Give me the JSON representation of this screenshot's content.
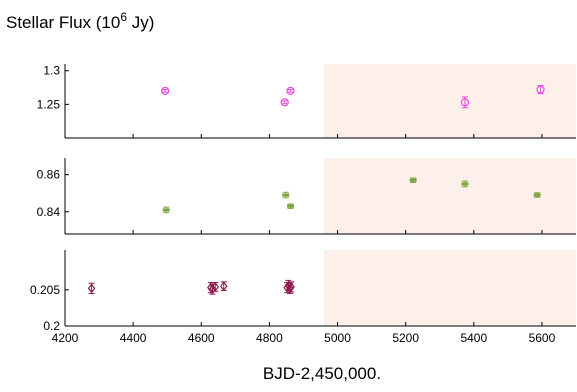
{
  "chart_data": {
    "type": "scatter",
    "title": "Stellar Flux (10",
    "title_exponent": "6",
    "title_unit": " Jy)",
    "xlabel": "BJD-2,450,000.",
    "xlim": [
      4200,
      5700
    ],
    "x_ticks": [
      4200,
      4400,
      4600,
      4800,
      5000,
      5200,
      5400,
      5600
    ],
    "shaded_region": {
      "x_start": 4960,
      "color": "#fdf0ea"
    },
    "panels": [
      {
        "ylim": [
          1.2,
          1.31
        ],
        "y_ticks": [
          {
            "value": 1.25,
            "label": "1.25"
          },
          {
            "value": 1.3,
            "label": "1.3"
          }
        ],
        "color": "#e84ae3",
        "marker": "circle",
        "points": [
          {
            "x": 4494,
            "y": 1.27,
            "err": 0.002
          },
          {
            "x": 4845,
            "y": 1.253,
            "err": 0.002
          },
          {
            "x": 4862,
            "y": 1.27,
            "err": 0.002
          },
          {
            "x": 5374,
            "y": 1.253,
            "err": 0.008
          },
          {
            "x": 5596,
            "y": 1.272,
            "err": 0.006
          }
        ]
      },
      {
        "ylim": [
          0.828,
          0.869
        ],
        "y_ticks": [
          {
            "value": 0.84,
            "label": "0.84"
          },
          {
            "value": 0.86,
            "label": "0.86"
          }
        ],
        "color": "#7ea23c",
        "marker": "bar",
        "points": [
          {
            "x": 4497,
            "y": 0.841,
            "err": 0.0015
          },
          {
            "x": 4848,
            "y": 0.849,
            "err": 0.0015
          },
          {
            "x": 4862,
            "y": 0.843,
            "err": 0.0012
          },
          {
            "x": 5222,
            "y": 0.857,
            "err": 0.0012
          },
          {
            "x": 5374,
            "y": 0.855,
            "err": 0.0015
          },
          {
            "x": 5586,
            "y": 0.849,
            "err": 0.0012
          }
        ]
      },
      {
        "ylim": [
          0.2,
          0.2105
        ],
        "y_ticks": [
          {
            "value": 0.2,
            "label": "0.2"
          },
          {
            "value": 0.205,
            "label": "0.205"
          }
        ],
        "color": "#8e1a4d",
        "marker": "diamond",
        "points": [
          {
            "x": 4278,
            "y": 0.2052,
            "err": 0.0007
          },
          {
            "x": 4628,
            "y": 0.2053,
            "err": 0.0007
          },
          {
            "x": 4633,
            "y": 0.2051,
            "err": 0.0007
          },
          {
            "x": 4641,
            "y": 0.2054,
            "err": 0.0006
          },
          {
            "x": 4666,
            "y": 0.2055,
            "err": 0.0006
          },
          {
            "x": 4852,
            "y": 0.2053,
            "err": 0.0007
          },
          {
            "x": 4856,
            "y": 0.2056,
            "err": 0.0007
          },
          {
            "x": 4861,
            "y": 0.2052,
            "err": 0.0007
          },
          {
            "x": 4864,
            "y": 0.2054,
            "err": 0.0007
          }
        ]
      }
    ]
  }
}
